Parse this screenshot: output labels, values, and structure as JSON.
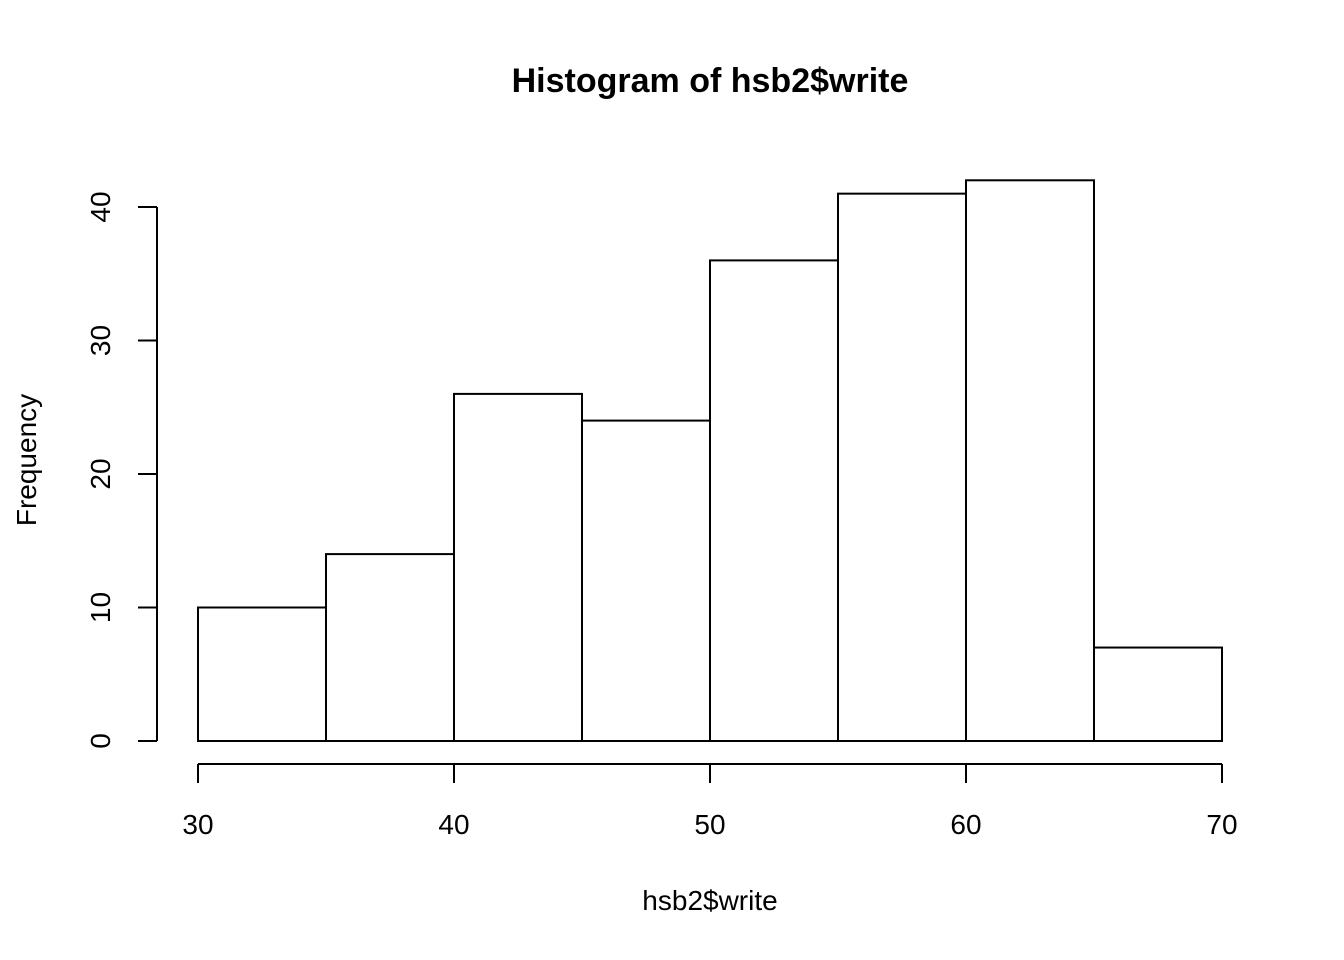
{
  "chart_data": {
    "type": "bar",
    "title": "Histogram of hsb2$write",
    "xlabel": "hsb2$write",
    "ylabel": "Frequency",
    "bins": [
      {
        "start": 30,
        "end": 35,
        "count": 10
      },
      {
        "start": 35,
        "end": 40,
        "count": 14
      },
      {
        "start": 40,
        "end": 45,
        "count": 26
      },
      {
        "start": 45,
        "end": 50,
        "count": 24
      },
      {
        "start": 50,
        "end": 55,
        "count": 36
      },
      {
        "start": 55,
        "end": 60,
        "count": 41
      },
      {
        "start": 60,
        "end": 65,
        "count": 42
      },
      {
        "start": 65,
        "end": 70,
        "count": 7
      }
    ],
    "xlim": [
      30,
      70
    ],
    "ylim": [
      0,
      42
    ],
    "x_ticks": [
      "30",
      "40",
      "50",
      "60",
      "70"
    ],
    "y_ticks": [
      "0",
      "10",
      "20",
      "30",
      "40"
    ],
    "grid": false,
    "bar_fill": "#ffffff",
    "bar_stroke": "#000000"
  }
}
